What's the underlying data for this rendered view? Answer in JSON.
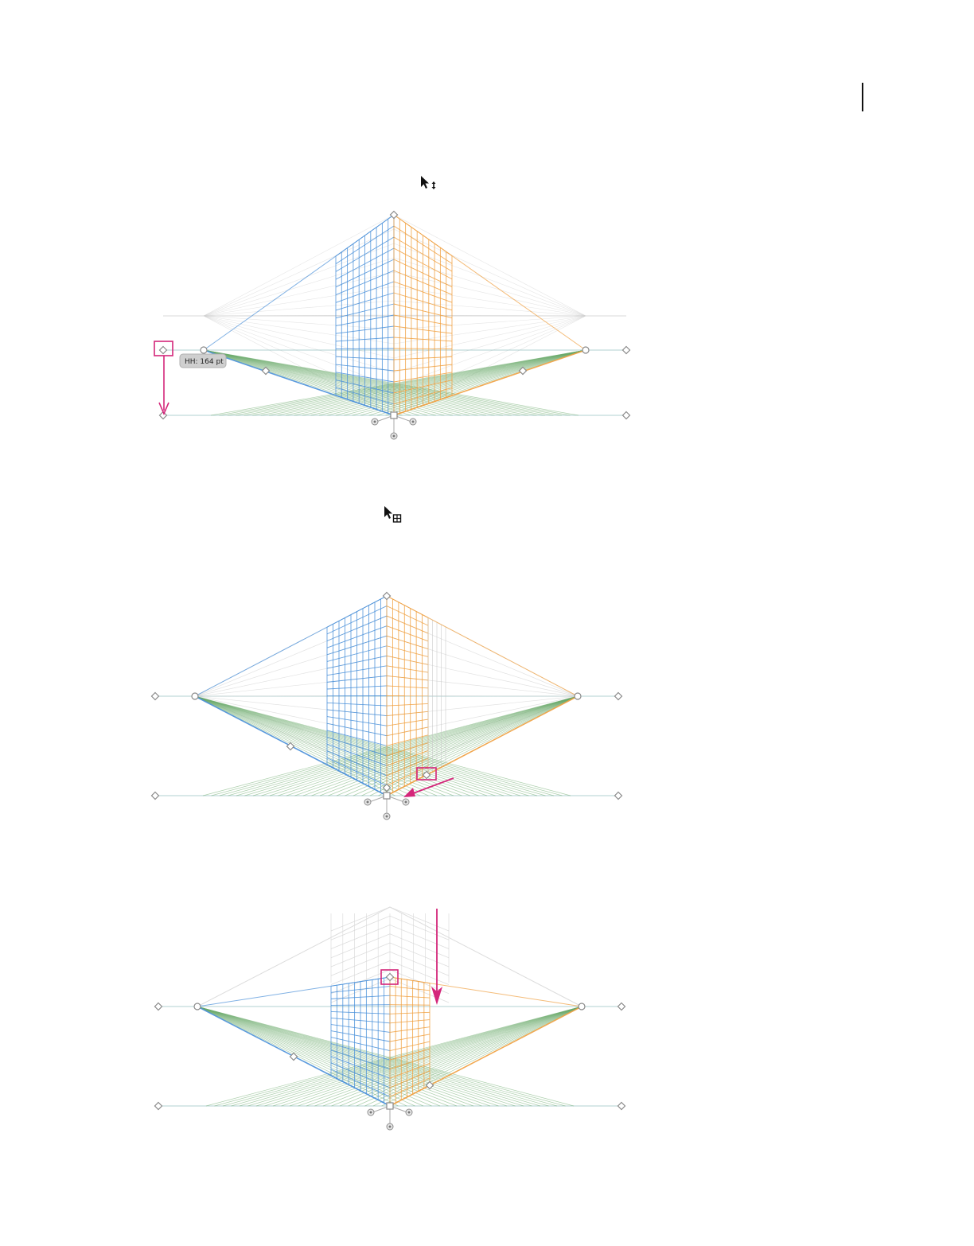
{
  "page": {
    "rule": "page-marker"
  },
  "figures": [
    {
      "id": "adjust-horizon-height",
      "cursor_icon": "move-vertical-cursor-icon",
      "tooltip": "HH: 164 pt",
      "colors": {
        "left_grid": "#4a90d9",
        "right_grid": "#f0a040",
        "ground_grid": "#6aaa6a",
        "callout": "#d4267a",
        "widget": "#9a9a9a"
      }
    },
    {
      "id": "adjust-grid-extent",
      "cursor_icon": "grid-extent-cursor-icon",
      "colors": {
        "left_grid": "#4a90d9",
        "right_grid": "#f0a040",
        "ground_grid": "#6aaa6a",
        "callout": "#d4267a",
        "widget": "#9a9a9a"
      }
    },
    {
      "id": "adjust-vertical-extent",
      "colors": {
        "left_grid": "#4a90d9",
        "right_grid": "#f0a040",
        "ground_grid": "#6aaa6a",
        "callout": "#d4267a",
        "widget": "#9a9a9a"
      }
    }
  ]
}
